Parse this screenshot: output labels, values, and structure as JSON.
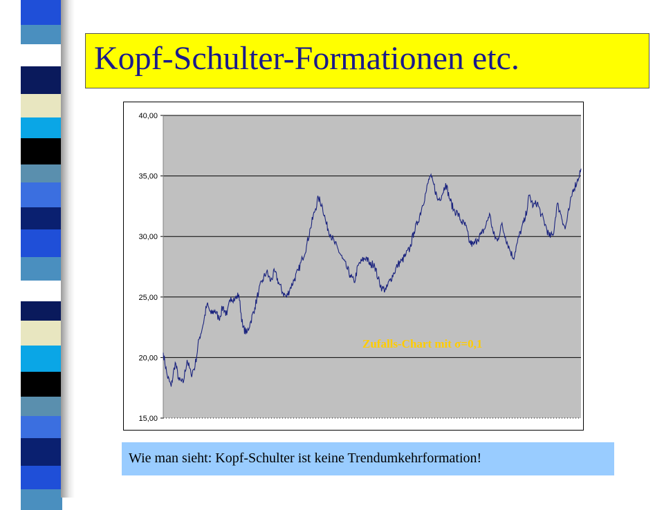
{
  "slide": {
    "title": "Kopf-Schulter-Formationen etc.",
    "caption": "Wie man sieht: Kopf-Schulter ist keine Trendumkehrformation!"
  },
  "colors": {
    "title_bg": "#ffff00",
    "title_text": "#1a1a8c",
    "plot_bg": "#c0c0c0",
    "line": "#1a237e",
    "annotation": "#ffcc00",
    "caption_bg": "#99ccff"
  },
  "chart_data": {
    "type": "line",
    "title": "",
    "xlabel": "",
    "ylabel": "",
    "ylim": [
      15,
      40
    ],
    "yticks": [
      "15,00",
      "20,00",
      "25,00",
      "30,00",
      "35,00",
      "40,00"
    ],
    "grid": true,
    "annotation": "Zufalls-Chart mit σ=0,1",
    "series": [
      {
        "points": [
          [
            0,
            20.4
          ],
          [
            2,
            18.5
          ],
          [
            4,
            17.6
          ],
          [
            6,
            19.6
          ],
          [
            8,
            18.1
          ],
          [
            10,
            17.9
          ],
          [
            12,
            19.8
          ],
          [
            14,
            18.6
          ],
          [
            16,
            19.3
          ],
          [
            18,
            21.5
          ],
          [
            20,
            22.7
          ],
          [
            22,
            24.4
          ],
          [
            24,
            23.6
          ],
          [
            26,
            23.9
          ],
          [
            28,
            23.2
          ],
          [
            30,
            24.2
          ],
          [
            32,
            23.5
          ],
          [
            34,
            25.0
          ],
          [
            36,
            24.8
          ],
          [
            38,
            25.2
          ],
          [
            40,
            22.5
          ],
          [
            42,
            22.0
          ],
          [
            44,
            23.0
          ],
          [
            46,
            24.1
          ],
          [
            48,
            25.5
          ],
          [
            50,
            26.4
          ],
          [
            52,
            27.1
          ],
          [
            54,
            26.3
          ],
          [
            56,
            27.1
          ],
          [
            58,
            26.2
          ],
          [
            60,
            25.4
          ],
          [
            62,
            25.0
          ],
          [
            64,
            25.8
          ],
          [
            66,
            26.5
          ],
          [
            68,
            27.2
          ],
          [
            70,
            28.2
          ],
          [
            72,
            29.2
          ],
          [
            74,
            30.7
          ],
          [
            76,
            32.0
          ],
          [
            78,
            33.2
          ],
          [
            80,
            32.5
          ],
          [
            82,
            31.0
          ],
          [
            84,
            30.2
          ],
          [
            86,
            29.5
          ],
          [
            88,
            28.9
          ],
          [
            90,
            28.2
          ],
          [
            92,
            27.5
          ],
          [
            94,
            26.8
          ],
          [
            96,
            26.2
          ],
          [
            98,
            27.6
          ],
          [
            100,
            28.0
          ],
          [
            102,
            28.3
          ],
          [
            104,
            27.6
          ],
          [
            106,
            27.8
          ],
          [
            108,
            26.5
          ],
          [
            110,
            25.7
          ],
          [
            112,
            25.6
          ],
          [
            114,
            26.4
          ],
          [
            116,
            27.0
          ],
          [
            118,
            27.7
          ],
          [
            120,
            28.0
          ],
          [
            122,
            28.5
          ],
          [
            124,
            29.0
          ],
          [
            126,
            30.4
          ],
          [
            128,
            31.2
          ],
          [
            130,
            32.4
          ],
          [
            132,
            33.6
          ],
          [
            134,
            35.0
          ],
          [
            136,
            34.3
          ],
          [
            138,
            33.0
          ],
          [
            140,
            33.4
          ],
          [
            142,
            34.4
          ],
          [
            144,
            33.1
          ],
          [
            146,
            32.2
          ],
          [
            148,
            31.9
          ],
          [
            150,
            31.2
          ],
          [
            152,
            30.9
          ],
          [
            154,
            29.5
          ],
          [
            156,
            29.3
          ],
          [
            158,
            29.8
          ],
          [
            160,
            30.2
          ],
          [
            162,
            30.8
          ],
          [
            164,
            31.9
          ],
          [
            166,
            30.2
          ],
          [
            168,
            29.6
          ],
          [
            170,
            31.0
          ],
          [
            172,
            30.0
          ],
          [
            174,
            29.0
          ],
          [
            176,
            28.2
          ],
          [
            178,
            29.5
          ],
          [
            180,
            30.6
          ],
          [
            182,
            31.5
          ],
          [
            184,
            33.4
          ],
          [
            186,
            32.5
          ],
          [
            188,
            32.8
          ],
          [
            190,
            31.8
          ],
          [
            192,
            31.0
          ],
          [
            194,
            30.0
          ],
          [
            196,
            30.1
          ],
          [
            198,
            32.7
          ],
          [
            200,
            31.8
          ],
          [
            202,
            30.6
          ],
          [
            204,
            32.2
          ],
          [
            206,
            33.9
          ],
          [
            208,
            34.5
          ],
          [
            210,
            35.6
          ]
        ]
      }
    ]
  }
}
